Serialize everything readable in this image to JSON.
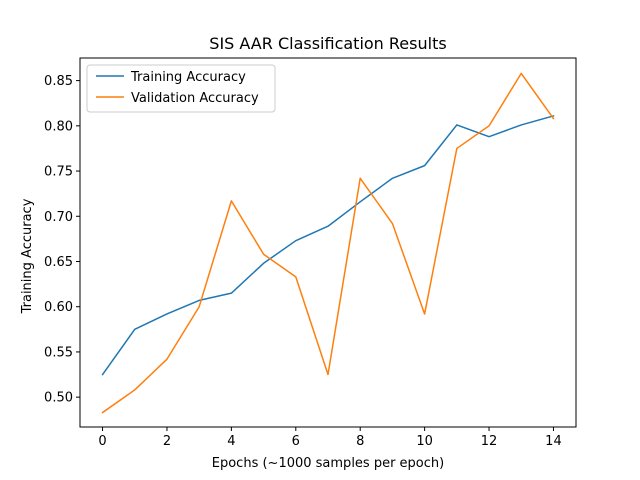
{
  "chart_data": {
    "type": "line",
    "title": "SIS AAR Classification Results",
    "xlabel": "Epochs (~1000 samples per epoch)",
    "ylabel": "Training Accuracy",
    "x": [
      0,
      1,
      2,
      3,
      4,
      5,
      6,
      7,
      8,
      9,
      10,
      11,
      12,
      13,
      14
    ],
    "xlim": [
      -0.7,
      14.7
    ],
    "ylim": [
      0.467,
      0.875
    ],
    "xticks": [
      0,
      2,
      4,
      6,
      8,
      10,
      12,
      14
    ],
    "yticks": [
      0.5,
      0.55,
      0.6,
      0.65,
      0.7,
      0.75,
      0.8,
      0.85
    ],
    "xtick_labels": [
      "0",
      "2",
      "4",
      "6",
      "8",
      "10",
      "12",
      "14"
    ],
    "ytick_labels": [
      "0.50",
      "0.55",
      "0.60",
      "0.65",
      "0.70",
      "0.75",
      "0.80",
      "0.85"
    ],
    "grid": false,
    "legend_position": "top-left",
    "series": [
      {
        "name": "Training Accuracy",
        "color": "#1f77b4",
        "values": [
          0.525,
          0.575,
          0.592,
          0.607,
          0.615,
          0.648,
          0.673,
          0.689,
          0.716,
          0.742,
          0.756,
          0.801,
          0.788,
          0.801,
          0.811
        ]
      },
      {
        "name": "Validation Accuracy",
        "color": "#ff7f0e",
        "values": [
          0.483,
          0.508,
          0.542,
          0.6,
          0.717,
          0.658,
          0.633,
          0.525,
          0.742,
          0.692,
          0.592,
          0.775,
          0.8,
          0.858,
          0.808
        ]
      }
    ]
  }
}
